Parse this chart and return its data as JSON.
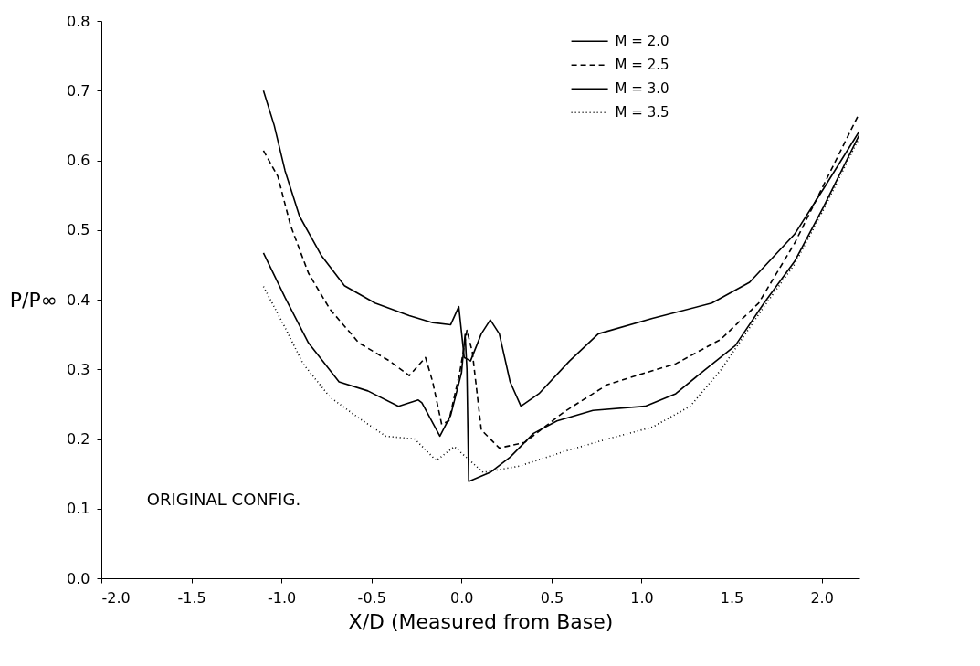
{
  "chart_data": {
    "type": "line",
    "xlabel": "X/D (Measured from Base)",
    "ylabel": "P/P∞",
    "xlim": [
      -2.0,
      2.21
    ],
    "ylim": [
      0.0,
      0.8
    ],
    "xticks": [
      {
        "value": -2.0,
        "label": "-2.0"
      },
      -1.5,
      {
        "value": -1.0,
        "label": "-1.0"
      },
      -0.5,
      {
        "value": 0.0,
        "label": "0.0"
      },
      0.5,
      {
        "value": 1.0,
        "label": "1.0"
      },
      1.5,
      {
        "value": 2.0,
        "label": "2.0"
      }
    ],
    "yticks": [
      {
        "value": 0.0,
        "label": "0.0"
      },
      0.1,
      0.2,
      0.3,
      0.4,
      0.5,
      0.6,
      0.7,
      0.8
    ],
    "grid": false,
    "legend": "top right",
    "marker": "none",
    "annotations": [
      "ORIGINAL CONFIG."
    ],
    "series": [
      {
        "name": "M = 2.0",
        "color": "#000000",
        "line_style": "solid",
        "x": [
          -1.1,
          -1.04,
          -0.98,
          -0.9,
          -0.78,
          -0.65,
          -0.48,
          -0.29,
          -0.16,
          -0.06,
          -0.015,
          0.015,
          0.05,
          0.11,
          0.16,
          0.21,
          0.27,
          0.33,
          0.43,
          0.6,
          0.76,
          1.06,
          1.39,
          1.6,
          1.85,
          2.01,
          2.21
        ],
        "values": [
          0.7,
          0.65,
          0.585,
          0.52,
          0.464,
          0.42,
          0.395,
          0.377,
          0.367,
          0.364,
          0.39,
          0.317,
          0.312,
          0.351,
          0.371,
          0.351,
          0.282,
          0.247,
          0.265,
          0.312,
          0.351,
          0.373,
          0.395,
          0.425,
          0.494,
          0.559,
          0.642
        ]
      },
      {
        "name": "M = 2.5",
        "color": "#000000",
        "line_style": "dashed",
        "x": [
          -1.1,
          -1.02,
          -0.95,
          -0.85,
          -0.73,
          -0.57,
          -0.4,
          -0.29,
          -0.2,
          -0.16,
          -0.11,
          -0.07,
          -0.01,
          0.03,
          0.06,
          0.11,
          0.21,
          0.35,
          0.57,
          0.81,
          1.06,
          1.19,
          1.44,
          1.65,
          1.85,
          2.01,
          2.21
        ],
        "values": [
          0.614,
          0.577,
          0.507,
          0.438,
          0.386,
          0.338,
          0.312,
          0.291,
          0.317,
          0.282,
          0.221,
          0.226,
          0.295,
          0.356,
          0.325,
          0.213,
          0.187,
          0.195,
          0.239,
          0.278,
          0.298,
          0.308,
          0.343,
          0.395,
          0.481,
          0.564,
          0.668
        ]
      },
      {
        "name": "M = 3.0",
        "color": "#000000",
        "line_style": "solid",
        "x": [
          -1.1,
          -0.98,
          -0.85,
          -0.68,
          -0.52,
          -0.35,
          -0.24,
          -0.22,
          -0.12,
          -0.06,
          0.0,
          0.02,
          0.03,
          0.04,
          0.16,
          0.27,
          0.4,
          0.53,
          0.73,
          1.02,
          1.19,
          1.35,
          1.52,
          1.68,
          1.85,
          2.01,
          2.21
        ],
        "values": [
          0.467,
          0.403,
          0.338,
          0.282,
          0.269,
          0.247,
          0.256,
          0.252,
          0.204,
          0.234,
          0.295,
          0.35,
          0.3,
          0.139,
          0.152,
          0.174,
          0.208,
          0.226,
          0.241,
          0.247,
          0.265,
          0.299,
          0.334,
          0.395,
          0.455,
          0.533,
          0.637
        ]
      },
      {
        "name": "M = 3.5",
        "color": "#000000",
        "line_style": "dotted",
        "x": [
          -1.1,
          -0.98,
          -0.88,
          -0.73,
          -0.57,
          -0.42,
          -0.26,
          -0.14,
          -0.04,
          0.025,
          0.12,
          0.32,
          0.57,
          0.81,
          1.06,
          1.27,
          1.44,
          1.68,
          1.85,
          2.01,
          2.21
        ],
        "values": [
          0.419,
          0.36,
          0.308,
          0.26,
          0.23,
          0.204,
          0.2,
          0.169,
          0.189,
          0.174,
          0.152,
          0.161,
          0.182,
          0.2,
          0.217,
          0.247,
          0.299,
          0.39,
          0.451,
          0.529,
          0.633
        ]
      }
    ]
  }
}
